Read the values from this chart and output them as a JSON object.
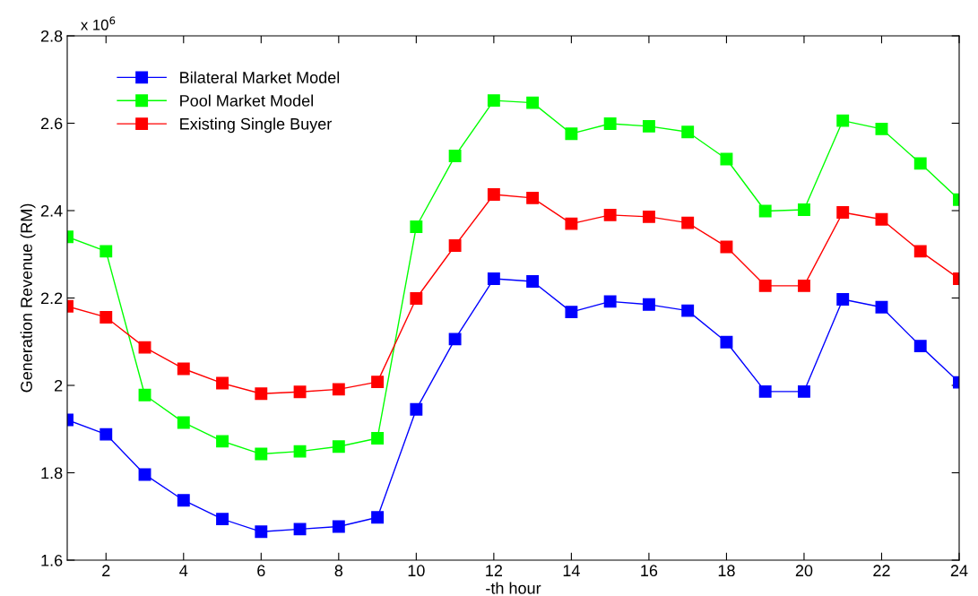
{
  "chart_data": {
    "type": "line",
    "xlabel": "-th hour",
    "ylabel": "Generation Revenue (RM)",
    "annotations": [
      "x 10$^{6}$"
    ],
    "x": [
      1,
      2,
      3,
      4,
      5,
      6,
      7,
      8,
      9,
      10,
      11,
      12,
      13,
      14,
      15,
      16,
      17,
      18,
      19,
      20,
      21,
      22,
      23,
      24
    ],
    "series": [
      {
        "name": "Bilateral Market Model",
        "color": "#0000ff",
        "values": [
          1.921,
          1.888,
          1.796,
          1.737,
          1.694,
          1.665,
          1.671,
          1.677,
          1.698,
          1.945,
          2.106,
          2.244,
          2.238,
          2.168,
          2.192,
          2.185,
          2.171,
          2.099,
          1.986,
          1.986,
          2.197,
          2.179,
          2.09,
          2.007
        ]
      },
      {
        "name": "Pool Market Model",
        "color": "#00ff00",
        "values": [
          2.34,
          2.307,
          1.978,
          1.915,
          1.872,
          1.843,
          1.849,
          1.86,
          1.879,
          2.363,
          2.525,
          2.652,
          2.647,
          2.576,
          2.599,
          2.593,
          2.58,
          2.518,
          2.399,
          2.402,
          2.606,
          2.587,
          2.508,
          2.425
        ]
      },
      {
        "name": "Existing Single Buyer",
        "color": "#ff0000",
        "values": [
          2.181,
          2.156,
          2.087,
          2.038,
          2.005,
          1.981,
          1.985,
          1.991,
          2.008,
          2.199,
          2.32,
          2.437,
          2.429,
          2.37,
          2.39,
          2.386,
          2.372,
          2.317,
          2.228,
          2.228,
          2.396,
          2.38,
          2.307,
          2.244
        ]
      }
    ],
    "xlim": [
      1,
      24
    ],
    "xticks": [
      2,
      4,
      6,
      8,
      10,
      12,
      14,
      16,
      18,
      20,
      22,
      24
    ],
    "ylim": [
      1.6,
      2.8
    ],
    "yticks": [
      1.6,
      1.8,
      2,
      2.2,
      2.4,
      2.6,
      2.8
    ],
    "grid": false,
    "legend": "top left",
    "marker": "square",
    "line_style": "solid"
  }
}
